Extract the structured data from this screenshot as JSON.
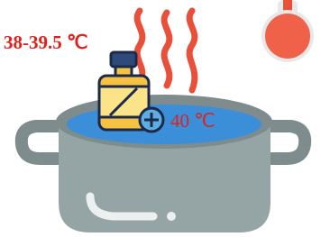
{
  "labels": {
    "range": "38-39.5 ℃",
    "pot": "40 ℃"
  }
}
